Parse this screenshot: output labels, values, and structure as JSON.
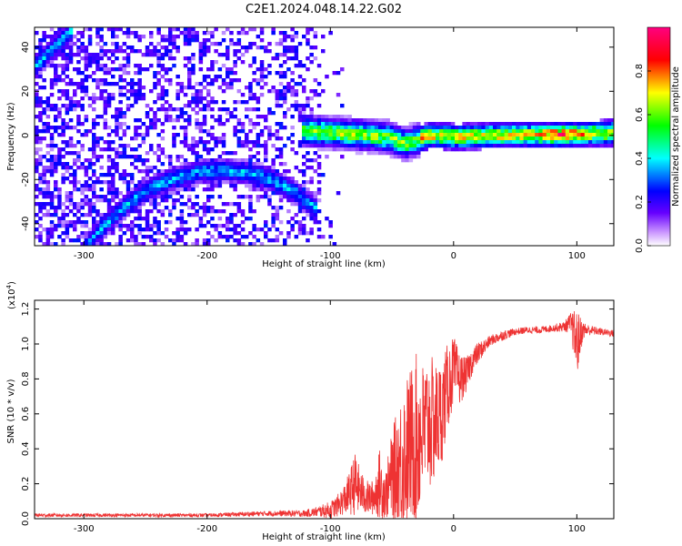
{
  "figure": {
    "title": "C2E1.2024.048.14.22.G02"
  },
  "chart_data": [
    {
      "type": "heatmap",
      "xlabel": "Height of straight line (km)",
      "ylabel": "Frequency (Hz)",
      "xlim": [
        -340,
        130
      ],
      "ylim": [
        -50,
        49
      ],
      "xticks": [
        -300,
        -200,
        -100,
        0,
        100
      ],
      "yticks": [
        -40,
        -20,
        0,
        20,
        40
      ],
      "colorbar": {
        "label": "Normalized spectral amplitude",
        "range": [
          0.0,
          1.0
        ],
        "ticks": [
          0.0,
          0.2,
          0.4,
          0.6,
          0.8
        ],
        "tick_labels": [
          "0.0",
          "0.2",
          "0.4",
          "0.6",
          "0.8"
        ],
        "colormap": [
          "#ffffff",
          "#6600ff",
          "#0000ff",
          "#00ffff",
          "#00ff00",
          "#ffff00",
          "#ff0000",
          "#ff0080"
        ]
      },
      "features": [
        {
          "x": [
            -340,
            -310
          ],
          "y": [
            33,
            49
          ],
          "amplitude": 0.35
        },
        {
          "x": [
            -300,
            -290,
            -270,
            -250,
            -230,
            -210,
            -190,
            -170,
            -150,
            -130,
            -112
          ],
          "y": [
            -50,
            -43,
            -32,
            -24,
            -19,
            -16,
            -15,
            -16,
            -19,
            -25,
            -33
          ],
          "amplitude": 0.35
        },
        {
          "x": [
            -125,
            -100,
            -75,
            -55,
            -40,
            -30,
            -20,
            0,
            40,
            80,
            130
          ],
          "y": [
            3,
            2,
            1,
            0,
            -3,
            -1,
            1,
            0,
            1,
            1,
            2
          ],
          "amplitude": 0.6
        }
      ]
    },
    {
      "type": "line",
      "xlabel": "Height of straight line (km)",
      "ylabel": "SNR (10 * v/v)",
      "yscale_label": "(x10",
      "yscale_exp": "4",
      "yscale_close": ")",
      "xlim": [
        -340,
        130
      ],
      "ylim": [
        0,
        1.25
      ],
      "xticks": [
        -300,
        -200,
        -100,
        0,
        100
      ],
      "yticks": [
        0.0,
        0.2,
        0.4,
        0.6,
        0.8,
        1.0,
        1.2
      ],
      "ytick_labels": [
        "0.0",
        "0.2",
        "0.4",
        "0.6",
        "0.8",
        "1.0",
        "1.2"
      ],
      "series": [
        {
          "color": "#ee3333",
          "x": [
            -340,
            -300,
            -250,
            -200,
            -150,
            -120,
            -110,
            -100,
            -95,
            -90,
            -85,
            -80,
            -75,
            -70,
            -65,
            -60,
            -55,
            -50,
            -45,
            -40,
            -35,
            -30,
            -25,
            -20,
            -15,
            -10,
            -5,
            0,
            5,
            10,
            15,
            20,
            30,
            40,
            50,
            60,
            70,
            80,
            90,
            95,
            100,
            105,
            110,
            120,
            130
          ],
          "y": [
            0.02,
            0.02,
            0.02,
            0.02,
            0.03,
            0.03,
            0.04,
            0.05,
            0.07,
            0.1,
            0.14,
            0.2,
            0.15,
            0.12,
            0.12,
            0.2,
            0.14,
            0.25,
            0.3,
            0.35,
            0.42,
            0.45,
            0.5,
            0.55,
            0.55,
            0.6,
            0.75,
            0.85,
            0.8,
            0.82,
            0.9,
            0.95,
            1.02,
            1.05,
            1.07,
            1.08,
            1.08,
            1.09,
            1.1,
            1.12,
            1.0,
            1.08,
            1.08,
            1.07,
            1.06
          ],
          "noise": [
            0.01,
            0.01,
            0.01,
            0.01,
            0.015,
            0.02,
            0.03,
            0.05,
            0.06,
            0.08,
            0.12,
            0.18,
            0.12,
            0.1,
            0.1,
            0.2,
            0.14,
            0.25,
            0.35,
            0.45,
            0.45,
            0.5,
            0.4,
            0.4,
            0.35,
            0.3,
            0.25,
            0.2,
            0.15,
            0.1,
            0.08,
            0.06,
            0.03,
            0.03,
            0.02,
            0.02,
            0.02,
            0.02,
            0.03,
            0.06,
            0.2,
            0.05,
            0.03,
            0.02,
            0.02
          ]
        }
      ]
    }
  ]
}
